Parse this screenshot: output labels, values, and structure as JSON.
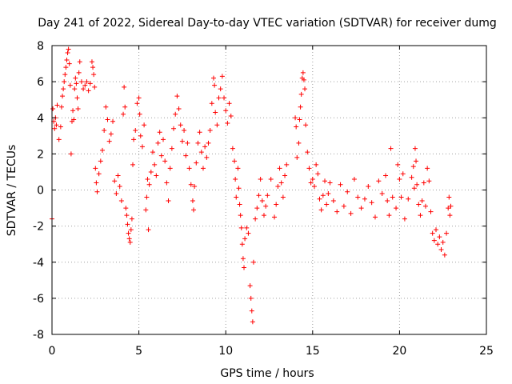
{
  "chart_data": {
    "type": "scatter",
    "title": "Day 241 of 2022, Sidereal Day-to-day VTEC variation (SDTVAR) for receiver dumg",
    "xlabel": "GPS time / hours",
    "ylabel": "SDTVAR / TECUs",
    "xlim": [
      0,
      25
    ],
    "ylim": [
      -8,
      8
    ],
    "x_ticks": [
      "0",
      "5",
      "10",
      "15",
      "20",
      "25"
    ],
    "y_ticks": [
      "8",
      "6",
      "4",
      "2",
      "0",
      "-2",
      "-4",
      "-6",
      "-8"
    ],
    "grid": true,
    "marker": "+",
    "marker_color": "#ff0000",
    "series": [
      {
        "name": "SDTVAR",
        "points": [
          [
            0.0,
            -1.6
          ],
          [
            0.05,
            4.5
          ],
          [
            0.1,
            3.8
          ],
          [
            0.15,
            3.4
          ],
          [
            0.2,
            4.0
          ],
          [
            0.25,
            3.6
          ],
          [
            0.3,
            4.7
          ],
          [
            0.4,
            2.8
          ],
          [
            0.5,
            3.5
          ],
          [
            0.55,
            4.6
          ],
          [
            0.6,
            5.2
          ],
          [
            0.65,
            5.6
          ],
          [
            0.7,
            6.0
          ],
          [
            0.75,
            6.4
          ],
          [
            0.8,
            6.8
          ],
          [
            0.85,
            7.2
          ],
          [
            0.9,
            7.6
          ],
          [
            0.95,
            7.8
          ],
          [
            1.0,
            7.0
          ],
          [
            1.05,
            5.8
          ],
          [
            1.1,
            2.0
          ],
          [
            1.15,
            3.8
          ],
          [
            1.2,
            4.4
          ],
          [
            1.25,
            3.9
          ],
          [
            1.3,
            5.6
          ],
          [
            1.35,
            6.2
          ],
          [
            1.4,
            5.9
          ],
          [
            1.45,
            5.1
          ],
          [
            1.5,
            4.5
          ],
          [
            1.55,
            6.5
          ],
          [
            1.6,
            7.1
          ],
          [
            1.7,
            6.0
          ],
          [
            1.8,
            5.6
          ],
          [
            1.9,
            5.8
          ],
          [
            2.0,
            6.0
          ],
          [
            2.1,
            5.5
          ],
          [
            2.2,
            5.9
          ],
          [
            2.3,
            7.1
          ],
          [
            2.35,
            6.8
          ],
          [
            2.4,
            6.4
          ],
          [
            2.45,
            5.7
          ],
          [
            2.5,
            1.2
          ],
          [
            2.55,
            0.4
          ],
          [
            2.6,
            -0.1
          ],
          [
            2.7,
            0.9
          ],
          [
            2.8,
            1.6
          ],
          [
            2.9,
            2.2
          ],
          [
            3.0,
            3.3
          ],
          [
            3.1,
            4.6
          ],
          [
            3.2,
            3.9
          ],
          [
            3.3,
            2.7
          ],
          [
            3.4,
            3.1
          ],
          [
            3.5,
            3.8
          ],
          [
            3.6,
            0.5
          ],
          [
            3.7,
            -0.2
          ],
          [
            3.8,
            0.8
          ],
          [
            3.9,
            0.2
          ],
          [
            4.0,
            -0.6
          ],
          [
            4.1,
            4.2
          ],
          [
            4.15,
            5.7
          ],
          [
            4.2,
            4.6
          ],
          [
            4.25,
            -1.0
          ],
          [
            4.3,
            -1.4
          ],
          [
            4.35,
            -1.9
          ],
          [
            4.4,
            -2.4
          ],
          [
            4.45,
            -2.7
          ],
          [
            4.5,
            -2.9
          ],
          [
            4.55,
            -2.2
          ],
          [
            4.6,
            -1.6
          ],
          [
            4.65,
            1.4
          ],
          [
            4.7,
            2.8
          ],
          [
            4.8,
            3.3
          ],
          [
            4.9,
            4.8
          ],
          [
            5.0,
            5.1
          ],
          [
            5.05,
            4.2
          ],
          [
            5.1,
            3.0
          ],
          [
            5.2,
            2.4
          ],
          [
            5.3,
            3.6
          ],
          [
            5.4,
            -1.1
          ],
          [
            5.45,
            -0.4
          ],
          [
            5.5,
            0.6
          ],
          [
            5.55,
            -2.2
          ],
          [
            5.6,
            0.3
          ],
          [
            5.7,
            1.0
          ],
          [
            5.8,
            2.1
          ],
          [
            5.9,
            1.4
          ],
          [
            6.0,
            0.8
          ],
          [
            6.1,
            2.6
          ],
          [
            6.2,
            3.2
          ],
          [
            6.3,
            1.9
          ],
          [
            6.4,
            2.8
          ],
          [
            6.5,
            1.6
          ],
          [
            6.6,
            0.4
          ],
          [
            6.7,
            -0.6
          ],
          [
            6.8,
            1.2
          ],
          [
            6.9,
            2.3
          ],
          [
            7.0,
            3.4
          ],
          [
            7.1,
            4.2
          ],
          [
            7.2,
            5.2
          ],
          [
            7.3,
            4.5
          ],
          [
            7.4,
            3.6
          ],
          [
            7.5,
            2.7
          ],
          [
            7.6,
            3.3
          ],
          [
            7.7,
            1.9
          ],
          [
            7.8,
            2.6
          ],
          [
            7.9,
            1.2
          ],
          [
            8.0,
            0.3
          ],
          [
            8.1,
            -0.6
          ],
          [
            8.15,
            -1.1
          ],
          [
            8.2,
            0.2
          ],
          [
            8.3,
            1.5
          ],
          [
            8.4,
            2.6
          ],
          [
            8.5,
            3.2
          ],
          [
            8.6,
            2.1
          ],
          [
            8.7,
            1.2
          ],
          [
            8.8,
            2.4
          ],
          [
            8.9,
            1.8
          ],
          [
            9.0,
            2.6
          ],
          [
            9.1,
            3.3
          ],
          [
            9.2,
            4.8
          ],
          [
            9.3,
            6.2
          ],
          [
            9.35,
            5.8
          ],
          [
            9.4,
            4.3
          ],
          [
            9.5,
            3.6
          ],
          [
            9.6,
            5.1
          ],
          [
            9.7,
            5.6
          ],
          [
            9.8,
            6.3
          ],
          [
            9.9,
            5.1
          ],
          [
            10.0,
            4.4
          ],
          [
            10.1,
            3.7
          ],
          [
            10.2,
            4.8
          ],
          [
            10.3,
            4.1
          ],
          [
            10.4,
            2.3
          ],
          [
            10.5,
            1.6
          ],
          [
            10.55,
            0.6
          ],
          [
            10.6,
            -0.4
          ],
          [
            10.7,
            1.2
          ],
          [
            10.75,
            0.1
          ],
          [
            10.8,
            -0.8
          ],
          [
            10.85,
            -1.4
          ],
          [
            10.9,
            -2.1
          ],
          [
            10.95,
            -3.0
          ],
          [
            11.0,
            -3.8
          ],
          [
            11.05,
            -4.3
          ],
          [
            11.1,
            -2.7
          ],
          [
            11.2,
            -2.1
          ],
          [
            11.3,
            -2.4
          ],
          [
            11.4,
            -5.3
          ],
          [
            11.45,
            -6.0
          ],
          [
            11.5,
            -6.7
          ],
          [
            11.55,
            -7.3
          ],
          [
            11.6,
            -4.0
          ],
          [
            11.7,
            -1.6
          ],
          [
            11.8,
            -1.0
          ],
          [
            11.9,
            -0.3
          ],
          [
            12.0,
            0.6
          ],
          [
            12.1,
            -0.6
          ],
          [
            12.2,
            -1.4
          ],
          [
            12.3,
            -0.9
          ],
          [
            12.4,
            -0.3
          ],
          [
            12.6,
            0.6
          ],
          [
            12.8,
            -1.5
          ],
          [
            12.9,
            -0.8
          ],
          [
            13.0,
            0.2
          ],
          [
            13.1,
            1.2
          ],
          [
            13.2,
            0.4
          ],
          [
            13.3,
            -0.4
          ],
          [
            13.4,
            0.8
          ],
          [
            13.5,
            1.4
          ],
          [
            14.0,
            4.0
          ],
          [
            14.05,
            3.5
          ],
          [
            14.1,
            1.8
          ],
          [
            14.2,
            2.6
          ],
          [
            14.25,
            3.9
          ],
          [
            14.3,
            4.6
          ],
          [
            14.35,
            5.3
          ],
          [
            14.4,
            6.2
          ],
          [
            14.45,
            6.5
          ],
          [
            14.5,
            6.1
          ],
          [
            14.55,
            5.6
          ],
          [
            14.6,
            3.6
          ],
          [
            14.7,
            2.1
          ],
          [
            14.8,
            1.2
          ],
          [
            14.9,
            0.4
          ],
          [
            15.0,
            0.6
          ],
          [
            15.1,
            0.2
          ],
          [
            15.2,
            1.4
          ],
          [
            15.3,
            0.9
          ],
          [
            15.4,
            -0.5
          ],
          [
            15.5,
            -1.1
          ],
          [
            15.6,
            -0.3
          ],
          [
            15.7,
            0.5
          ],
          [
            15.8,
            -0.8
          ],
          [
            15.9,
            -0.2
          ],
          [
            16.0,
            0.4
          ],
          [
            16.2,
            -0.6
          ],
          [
            16.4,
            -1.2
          ],
          [
            16.6,
            0.3
          ],
          [
            16.8,
            -0.9
          ],
          [
            17.0,
            -0.1
          ],
          [
            17.2,
            -1.3
          ],
          [
            17.4,
            0.6
          ],
          [
            17.6,
            -0.4
          ],
          [
            17.8,
            -1.0
          ],
          [
            18.0,
            -0.5
          ],
          [
            18.2,
            0.2
          ],
          [
            18.4,
            -0.7
          ],
          [
            18.6,
            -1.5
          ],
          [
            18.8,
            0.5
          ],
          [
            19.0,
            -0.2
          ],
          [
            19.2,
            0.8
          ],
          [
            19.3,
            -0.6
          ],
          [
            19.4,
            -1.4
          ],
          [
            19.5,
            2.3
          ],
          [
            19.6,
            -0.4
          ],
          [
            19.8,
            -1.0
          ],
          [
            19.9,
            1.4
          ],
          [
            20.0,
            0.6
          ],
          [
            20.1,
            -0.4
          ],
          [
            20.2,
            0.9
          ],
          [
            20.3,
            -1.6
          ],
          [
            20.5,
            -0.5
          ],
          [
            20.7,
            0.7
          ],
          [
            20.8,
            1.3
          ],
          [
            20.85,
            0.1
          ],
          [
            20.9,
            2.3
          ],
          [
            20.95,
            1.6
          ],
          [
            21.0,
            0.3
          ],
          [
            21.1,
            -0.8
          ],
          [
            21.2,
            -1.4
          ],
          [
            21.3,
            -0.6
          ],
          [
            21.4,
            0.4
          ],
          [
            21.5,
            -0.9
          ],
          [
            21.6,
            1.2
          ],
          [
            21.7,
            0.5
          ],
          [
            21.8,
            -1.2
          ],
          [
            21.9,
            -2.4
          ],
          [
            22.0,
            -2.8
          ],
          [
            22.1,
            -2.2
          ],
          [
            22.2,
            -3.0
          ],
          [
            22.3,
            -2.6
          ],
          [
            22.4,
            -3.3
          ],
          [
            22.5,
            -2.9
          ],
          [
            22.6,
            -3.6
          ],
          [
            22.7,
            -2.4
          ],
          [
            22.8,
            -1.0
          ],
          [
            22.85,
            -0.4
          ],
          [
            22.9,
            -1.4
          ],
          [
            22.95,
            -0.9
          ]
        ]
      }
    ]
  }
}
